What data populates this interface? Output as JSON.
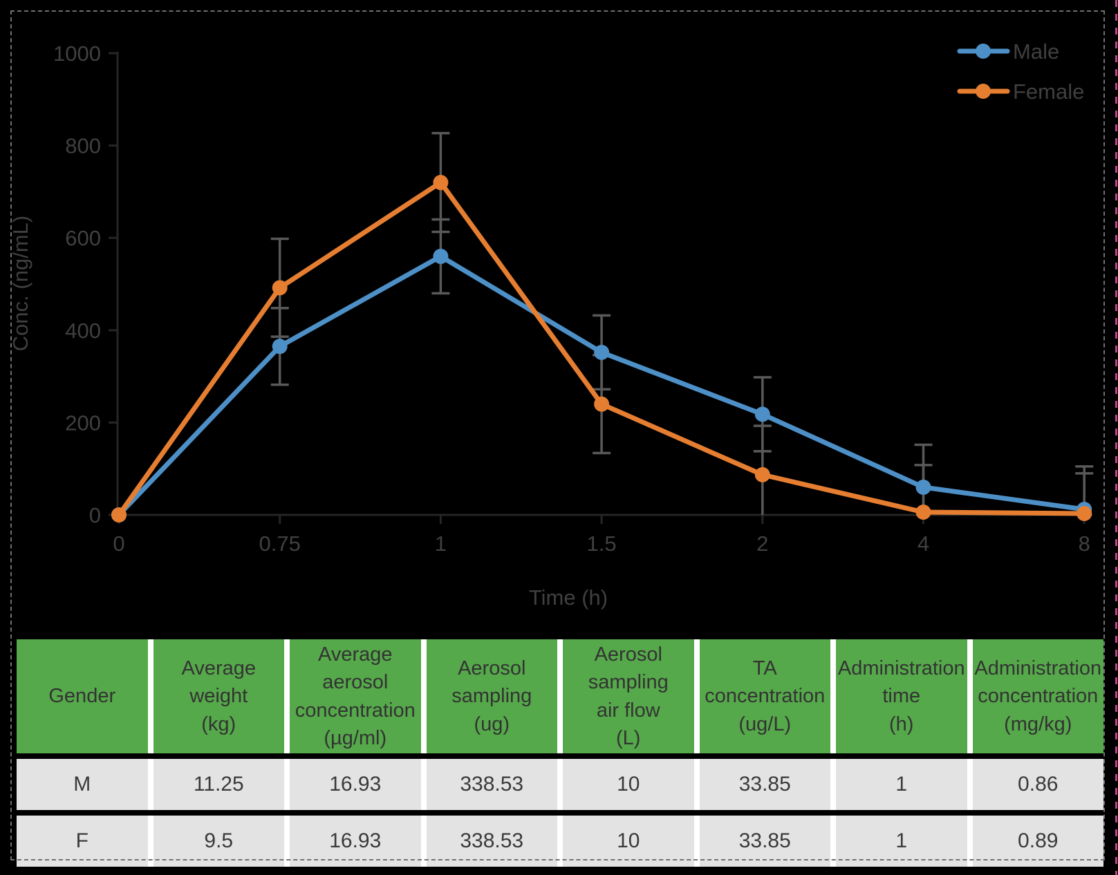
{
  "chart_data": {
    "type": "line",
    "title": "",
    "xlabel": "Time (h)",
    "ylabel": "Conc. (ng/mL)",
    "ylim": [
      0,
      1000
    ],
    "ytick_step": 200,
    "categories": [
      "0",
      "0.75",
      "1",
      "1.5",
      "2",
      "4",
      "8"
    ],
    "series": [
      {
        "name": "Male",
        "color": "#4D90C7",
        "values": [
          0,
          365,
          560,
          352,
          218,
          60,
          12
        ],
        "errors": [
          0,
          83,
          80,
          80,
          80,
          92,
          93
        ]
      },
      {
        "name": "Female",
        "color": "#E67E31",
        "values": [
          0,
          492,
          720,
          240,
          87,
          6,
          3
        ],
        "errors": [
          0,
          106,
          107,
          106,
          106,
          102,
          87
        ]
      }
    ],
    "error_bar_color": "#595959",
    "axis_color": "#262626",
    "text_color": "#404040",
    "legend_position": "top-right",
    "grid": false
  },
  "table": {
    "header_bg": "#55A94A",
    "row_bg": "#E3E3E3",
    "columns": [
      "Gender",
      "Average\nweight\n(kg)",
      "Average\naerosol\nconcentration\n(µg/ml)",
      "Aerosol\nsampling\n(ug)",
      "Aerosol\nsampling\nair flow\n(L)",
      "TA\nconcentration\n(ug/L)",
      "Administration\ntime\n(h)",
      "Administration\nconcentration\n(mg/kg)"
    ],
    "rows": [
      [
        "M",
        "11.25",
        "16.93",
        "338.53",
        "10",
        "33.85",
        "1",
        "0.86"
      ],
      [
        "F",
        "9.5",
        "16.93",
        "338.53",
        "10",
        "33.85",
        "1",
        "0.89"
      ]
    ]
  },
  "frame": {
    "border_color": "#707070",
    "edge_line_color": "#C0438C"
  }
}
